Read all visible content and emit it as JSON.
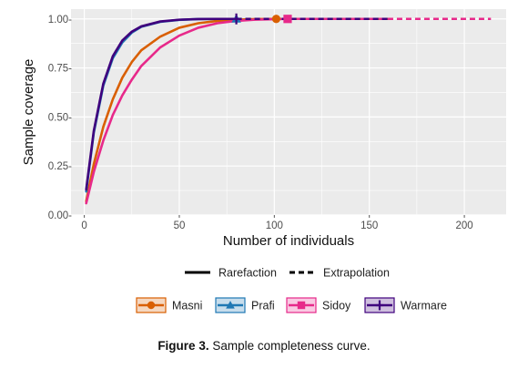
{
  "chart_data": {
    "type": "line",
    "xlabel": "Number of individuals",
    "ylabel": "Sample coverage",
    "xlim": [
      -7,
      222
    ],
    "ylim": [
      0,
      1.05
    ],
    "x_ticks": [
      0,
      50,
      100,
      150,
      200
    ],
    "x_tick_labels": [
      "0",
      "50",
      "100",
      "150",
      "200"
    ],
    "y_ticks": [
      0,
      0.25,
      0.5,
      0.75,
      1.0
    ],
    "y_tick_labels": [
      "0.00-",
      "0.25-",
      "0.50-",
      "0.75-",
      "1.00-"
    ],
    "grid": true,
    "panel_background": "#ebebeb",
    "grid_color": "#ffffff",
    "linetype_legend": {
      "position": "bottom",
      "items": [
        {
          "label": "Rarefaction",
          "style": "solid"
        },
        {
          "label": "Extrapolation",
          "style": "dashed"
        }
      ]
    },
    "series_legend_position": "bottom",
    "series": [
      {
        "name": "Masni",
        "color": "#d95f02",
        "marker": "circle",
        "observed_n": 101,
        "observed_coverage": 1.0,
        "extrapolated_to": 162,
        "rarefaction": {
          "x": [
            1,
            5,
            10,
            15,
            20,
            25,
            30,
            40,
            50,
            60,
            70,
            80,
            90,
            101
          ],
          "y": [
            0.07,
            0.26,
            0.45,
            0.59,
            0.7,
            0.78,
            0.84,
            0.91,
            0.955,
            0.978,
            0.99,
            0.996,
            0.999,
            1.0
          ]
        }
      },
      {
        "name": "Prafi",
        "color": "#1f78b4",
        "marker": "triangle",
        "observed_n": 80,
        "observed_coverage": 1.0,
        "extrapolated_to": 160,
        "rarefaction": {
          "x": [
            1,
            5,
            10,
            15,
            20,
            25,
            30,
            40,
            50,
            60,
            70,
            80
          ],
          "y": [
            0.12,
            0.42,
            0.66,
            0.8,
            0.88,
            0.93,
            0.96,
            0.985,
            0.995,
            0.999,
            1.0,
            1.0
          ]
        }
      },
      {
        "name": "Sidoy",
        "color": "#e7298a",
        "marker": "square",
        "observed_n": 107,
        "observed_coverage": 1.0,
        "extrapolated_to": 214,
        "rarefaction": {
          "x": [
            1,
            5,
            10,
            15,
            20,
            25,
            30,
            40,
            50,
            60,
            70,
            80,
            90,
            107
          ],
          "y": [
            0.06,
            0.22,
            0.38,
            0.51,
            0.61,
            0.69,
            0.76,
            0.855,
            0.915,
            0.955,
            0.978,
            0.99,
            0.996,
            1.0
          ]
        }
      },
      {
        "name": "Warmare",
        "color": "#3f007d",
        "marker": "plus",
        "observed_n": 80,
        "observed_coverage": 1.0,
        "extrapolated_to": 160,
        "rarefaction": {
          "x": [
            1,
            5,
            10,
            15,
            20,
            25,
            30,
            40,
            50,
            60,
            70,
            80
          ],
          "y": [
            0.13,
            0.43,
            0.67,
            0.81,
            0.89,
            0.935,
            0.962,
            0.987,
            0.996,
            0.999,
            1.0,
            1.0
          ]
        }
      }
    ]
  },
  "caption": {
    "label": "Figure 3.",
    "text": "Sample completeness curve."
  }
}
